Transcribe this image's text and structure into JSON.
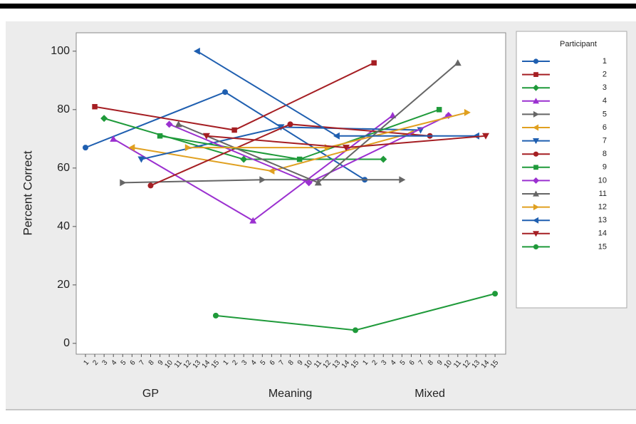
{
  "chart_data": {
    "type": "line",
    "ylabel": "Percent Correct",
    "legend_title": "Participant",
    "categories": [
      "GP",
      "Meaning",
      "Mixed"
    ],
    "ylim": [
      -3.7,
      106.3
    ],
    "yticks": [
      0,
      20,
      40,
      60,
      80,
      100
    ],
    "grid": false,
    "series": [
      {
        "name": "1",
        "color": "#1f5fb0",
        "marker": "circle",
        "values": [
          67,
          86,
          56
        ]
      },
      {
        "name": "2",
        "color": "#a51e23",
        "marker": "square",
        "values": [
          81,
          73,
          96
        ]
      },
      {
        "name": "3",
        "color": "#1f9a3a",
        "marker": "diamond",
        "values": [
          77,
          63,
          63
        ]
      },
      {
        "name": "4",
        "color": "#9b30d0",
        "marker": "tri-up",
        "values": [
          70,
          42,
          78
        ]
      },
      {
        "name": "5",
        "color": "#666666",
        "marker": "tri-right",
        "values": [
          55,
          56,
          56
        ]
      },
      {
        "name": "6",
        "color": "#e0a020",
        "marker": "tri-left",
        "values": [
          67,
          59,
          72
        ]
      },
      {
        "name": "7",
        "color": "#1f5fb0",
        "marker": "tri-down",
        "values": [
          63,
          74,
          73
        ]
      },
      {
        "name": "8",
        "color": "#a51e23",
        "marker": "circle",
        "values": [
          54,
          75,
          71
        ]
      },
      {
        "name": "9",
        "color": "#1f9a3a",
        "marker": "square",
        "values": [
          71,
          63,
          80
        ]
      },
      {
        "name": "10",
        "color": "#9b30d0",
        "marker": "diamond",
        "values": [
          75,
          55,
          78
        ]
      },
      {
        "name": "11",
        "color": "#666666",
        "marker": "tri-up",
        "values": [
          75,
          55,
          96
        ]
      },
      {
        "name": "12",
        "color": "#e0a020",
        "marker": "tri-right",
        "values": [
          67,
          67,
          79
        ]
      },
      {
        "name": "13",
        "color": "#1f5fb0",
        "marker": "tri-left",
        "values": [
          100,
          71,
          71
        ]
      },
      {
        "name": "14",
        "color": "#a51e23",
        "marker": "tri-down",
        "values": [
          71,
          67,
          71
        ]
      },
      {
        "name": "15",
        "color": "#1f9a3a",
        "marker": "circle",
        "values": [
          9.5,
          4.5,
          17
        ]
      }
    ]
  }
}
